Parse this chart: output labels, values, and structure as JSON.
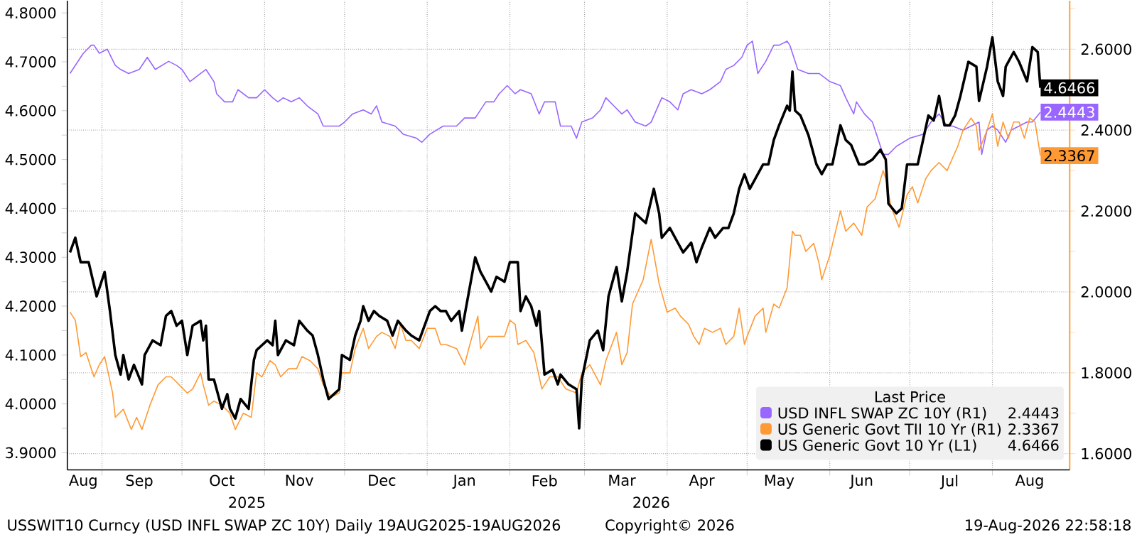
{
  "chart_data": {
    "type": "line",
    "legend_title": "Last Price",
    "legend": "bottom right",
    "grid": true,
    "xlim": [
      "2025-08-19",
      "2026-08-30"
    ],
    "xticks": [
      {
        "value": "2025-08-25",
        "label": "Aug"
      },
      {
        "value": "2025-09-01",
        "label": null
      },
      {
        "value": "2025-09-15",
        "label": "Sep"
      },
      {
        "value": "2025-10-01",
        "label": null
      },
      {
        "value": "2025-10-16",
        "label": "Oct"
      },
      {
        "value": "2025-11-01",
        "label": null
      },
      {
        "value": "2025-11-14",
        "label": "Nov"
      },
      {
        "value": "2025-12-01",
        "label": null
      },
      {
        "value": "2025-12-15",
        "label": "Dec"
      },
      {
        "value": "2026-01-01",
        "label": null
      },
      {
        "value": "2026-01-15",
        "label": "Jan"
      },
      {
        "value": "2026-02-01",
        "label": null
      },
      {
        "value": "2026-02-14",
        "label": "Feb"
      },
      {
        "value": "2026-03-01",
        "label": null
      },
      {
        "value": "2026-03-15",
        "label": "Mar"
      },
      {
        "value": "2026-04-01",
        "label": null
      },
      {
        "value": "2026-04-14",
        "label": "Apr"
      },
      {
        "value": "2026-05-01",
        "label": null
      },
      {
        "value": "2026-05-13",
        "label": "May"
      },
      {
        "value": "2026-06-01",
        "label": null
      },
      {
        "value": "2026-06-13",
        "label": "Jun"
      },
      {
        "value": "2026-07-01",
        "label": null
      },
      {
        "value": "2026-07-16",
        "label": "Jul"
      },
      {
        "value": "2026-08-01",
        "label": null
      },
      {
        "value": "2026-08-15",
        "label": "Aug"
      }
    ],
    "ylim": [
      3.865,
      4.825
    ],
    "yticks": [
      {
        "value": 3.9,
        "label": "3.9000"
      },
      {
        "value": 3.95,
        "label": null
      },
      {
        "value": 4.0,
        "label": "4.0000"
      },
      {
        "value": 4.05,
        "label": null
      },
      {
        "value": 4.1,
        "label": "4.1000"
      },
      {
        "value": 4.15,
        "label": null
      },
      {
        "value": 4.2,
        "label": "4.2000"
      },
      {
        "value": 4.25,
        "label": null
      },
      {
        "value": 4.3,
        "label": "4.3000"
      },
      {
        "value": 4.35,
        "label": null
      },
      {
        "value": 4.4,
        "label": "4.4000"
      },
      {
        "value": 4.45,
        "label": null
      },
      {
        "value": 4.5,
        "label": "4.5000"
      },
      {
        "value": 4.55,
        "label": null
      },
      {
        "value": 4.6,
        "label": "4.6000"
      },
      {
        "value": 4.65,
        "label": null
      },
      {
        "value": 4.7,
        "label": "4.7000"
      },
      {
        "value": 4.75,
        "label": null
      },
      {
        "value": 4.8,
        "label": "4.8000"
      }
    ],
    "y2lim": [
      1.56,
      2.72
    ],
    "y2ticks": [
      {
        "value": 1.6,
        "label": "1.6000"
      },
      {
        "value": 1.7,
        "label": null
      },
      {
        "value": 1.8,
        "label": "1.8000"
      },
      {
        "value": 1.9,
        "label": null
      },
      {
        "value": 2.0,
        "label": "2.0000"
      },
      {
        "value": 2.1,
        "label": null
      },
      {
        "value": 2.2,
        "label": "2.2000"
      },
      {
        "value": 2.3,
        "label": null
      },
      {
        "value": 2.4,
        "label": "2.4000"
      },
      {
        "value": 2.5,
        "label": null
      },
      {
        "value": 2.6,
        "label": "2.6000"
      },
      {
        "value": 2.7,
        "label": null
      }
    ],
    "annotations": [
      "2025",
      "2026",
      "USSWIT10 Curncy (USD INFL SWAP ZC 10Y) Daily 19AUG2025-19AUG2026",
      "Copyright© 2026",
      "19-Aug-2026 22:58:18"
    ],
    "series": [
      {
        "name": "USD INFL SWAP ZC 10Y (R1)",
        "color": "#9966ff",
        "axis": "y2",
        "x": [
          "2025-08-20",
          "2025-08-25",
          "2025-08-28",
          "2025-08-29",
          "2025-08-31",
          "2025-09-03",
          "2025-09-06",
          "2025-09-08",
          "2025-09-11",
          "2025-09-15",
          "2025-09-18",
          "2025-09-21",
          "2025-09-26",
          "2025-09-29",
          "2025-10-01",
          "2025-10-04",
          "2025-10-08",
          "2025-10-10",
          "2025-10-13",
          "2025-10-14",
          "2025-10-17",
          "2025-10-20",
          "2025-10-22",
          "2025-10-26",
          "2025-10-29",
          "2025-11-01",
          "2025-11-04",
          "2025-11-06",
          "2025-11-08",
          "2025-11-11",
          "2025-11-14",
          "2025-11-17",
          "2025-11-21",
          "2025-11-23",
          "2025-11-26",
          "2025-11-29",
          "2025-12-01",
          "2025-12-04",
          "2025-12-08",
          "2025-12-11",
          "2025-12-13",
          "2025-12-15",
          "2025-12-20",
          "2025-12-23",
          "2025-12-28",
          "2025-12-30",
          "2026-01-02",
          "2026-01-07",
          "2026-01-12",
          "2026-01-15",
          "2026-01-19",
          "2026-01-23",
          "2026-01-26",
          "2026-01-28",
          "2026-01-31",
          "2026-02-03",
          "2026-02-05",
          "2026-02-09",
          "2026-02-12",
          "2026-02-14",
          "2026-02-18",
          "2026-02-20",
          "2026-02-24",
          "2026-02-26",
          "2026-02-28",
          "2026-03-04",
          "2026-03-07",
          "2026-03-09",
          "2026-03-12",
          "2026-03-15",
          "2026-03-17",
          "2026-03-20",
          "2026-03-24",
          "2026-03-26",
          "2026-03-30",
          "2026-04-02",
          "2026-04-05",
          "2026-04-07",
          "2026-04-10",
          "2026-04-14",
          "2026-04-17",
          "2026-04-21",
          "2026-04-23",
          "2026-04-26",
          "2026-04-29",
          "2026-05-01",
          "2026-05-03",
          "2026-05-05",
          "2026-05-08",
          "2026-05-11",
          "2026-05-13",
          "2026-05-16",
          "2026-05-17",
          "2026-05-20",
          "2026-05-24",
          "2026-05-28",
          "2026-06-01",
          "2026-06-05",
          "2026-06-07",
          "2026-06-10",
          "2026-06-11",
          "2026-06-14",
          "2026-06-17",
          "2026-06-21",
          "2026-06-23",
          "2026-06-26",
          "2026-07-01",
          "2026-07-06",
          "2026-07-09",
          "2026-07-12",
          "2026-07-15",
          "2026-07-17",
          "2026-07-21",
          "2026-07-24",
          "2026-07-27",
          "2026-07-28",
          "2026-07-30",
          "2026-08-01",
          "2026-08-03",
          "2026-08-06",
          "2026-08-08",
          "2026-08-11",
          "2026-08-14",
          "2026-08-16",
          "2026-08-19"
        ],
        "values": [
          2.54,
          2.59,
          2.61,
          2.61,
          2.59,
          2.6,
          2.56,
          2.55,
          2.54,
          2.55,
          2.58,
          2.55,
          2.57,
          2.56,
          2.55,
          2.52,
          2.54,
          2.55,
          2.52,
          2.49,
          2.47,
          2.47,
          2.5,
          2.48,
          2.48,
          2.5,
          2.48,
          2.47,
          2.48,
          2.47,
          2.48,
          2.46,
          2.44,
          2.41,
          2.41,
          2.41,
          2.42,
          2.44,
          2.45,
          2.44,
          2.46,
          2.42,
          2.41,
          2.39,
          2.38,
          2.37,
          2.39,
          2.41,
          2.41,
          2.43,
          2.43,
          2.47,
          2.47,
          2.49,
          2.51,
          2.49,
          2.5,
          2.49,
          2.44,
          2.47,
          2.47,
          2.41,
          2.41,
          2.38,
          2.42,
          2.43,
          2.45,
          2.48,
          2.46,
          2.44,
          2.45,
          2.42,
          2.41,
          2.42,
          2.48,
          2.47,
          2.45,
          2.49,
          2.5,
          2.49,
          2.5,
          2.52,
          2.55,
          2.56,
          2.58,
          2.61,
          2.62,
          2.54,
          2.57,
          2.61,
          2.61,
          2.62,
          2.61,
          2.55,
          2.54,
          2.54,
          2.52,
          2.51,
          2.48,
          2.44,
          2.47,
          2.44,
          2.42,
          2.34,
          2.34,
          2.36,
          2.38,
          2.39,
          2.42,
          2.44,
          2.41,
          2.41,
          2.4,
          2.41,
          2.42,
          2.34,
          2.4,
          2.41,
          2.4,
          2.37,
          2.4,
          2.41,
          2.42,
          2.42,
          2.4443
        ],
        "value_labels": [
          null,
          null,
          null,
          null,
          null,
          null,
          null,
          null,
          null,
          null,
          null,
          null,
          null,
          null,
          null,
          null,
          null,
          null,
          null,
          null,
          null,
          null,
          null,
          null,
          null,
          null,
          null,
          null,
          null,
          null,
          null,
          null,
          null,
          null,
          null,
          null,
          null,
          null,
          null,
          null,
          null,
          null,
          null,
          null,
          null,
          null,
          null,
          null,
          null,
          null,
          null,
          null,
          null,
          null,
          null,
          null,
          null,
          null,
          null,
          null,
          null,
          null,
          null,
          null,
          null,
          null,
          null,
          null,
          null,
          null,
          null,
          null,
          null,
          null,
          null,
          null,
          null,
          null,
          null,
          null,
          null,
          null,
          null,
          null,
          null,
          null,
          null,
          null,
          null,
          null,
          null,
          null,
          null,
          null,
          null,
          null,
          null,
          null,
          null,
          null,
          null,
          null,
          null,
          null,
          null,
          null,
          null,
          null,
          null,
          null,
          null,
          null,
          null,
          null,
          null,
          null,
          null,
          null,
          null,
          null,
          null,
          null,
          null,
          null,
          "2.4443"
        ]
      },
      {
        "name": "US Generic Govt TII 10 Yr (R1)",
        "color": "#ff9933",
        "axis": "y2",
        "x": [
          "2025-08-20",
          "2025-08-22",
          "2025-08-24",
          "2025-08-26",
          "2025-08-29",
          "2025-08-31",
          "2025-09-02",
          "2025-09-05",
          "2025-09-06",
          "2025-09-09",
          "2025-09-12",
          "2025-09-14",
          "2025-09-16",
          "2025-09-19",
          "2025-09-22",
          "2025-09-25",
          "2025-09-27",
          "2025-09-30",
          "2025-10-03",
          "2025-10-05",
          "2025-10-08",
          "2025-10-09",
          "2025-10-11",
          "2025-10-13",
          "2025-10-16",
          "2025-10-19",
          "2025-10-21",
          "2025-10-24",
          "2025-10-27",
          "2025-10-29",
          "2025-10-31",
          "2025-11-03",
          "2025-11-05",
          "2025-11-07",
          "2025-11-10",
          "2025-11-13",
          "2025-11-15",
          "2025-11-18",
          "2025-11-21",
          "2025-11-23",
          "2025-11-26",
          "2025-11-29",
          "2025-11-30",
          "2025-12-03",
          "2025-12-05",
          "2025-12-08",
          "2025-12-10",
          "2025-12-13",
          "2025-12-15",
          "2025-12-18",
          "2025-12-20",
          "2025-12-22",
          "2025-12-24",
          "2025-12-26",
          "2025-12-29",
          "2026-01-01",
          "2026-01-04",
          "2026-01-06",
          "2026-01-08",
          "2026-01-12",
          "2026-01-15",
          "2026-01-17",
          "2026-01-20",
          "2026-01-21",
          "2026-01-24",
          "2026-01-27",
          "2026-01-30",
          "2026-02-01",
          "2026-02-03",
          "2026-02-04",
          "2026-02-07",
          "2026-02-10",
          "2026-02-12",
          "2026-02-13",
          "2026-02-16",
          "2026-02-19",
          "2026-02-22",
          "2026-02-26",
          "2026-02-28",
          "2026-03-03",
          "2026-03-07",
          "2026-03-09",
          "2026-03-13",
          "2026-03-15",
          "2026-03-17",
          "2026-03-19",
          "2026-03-23",
          "2026-03-26",
          "2026-03-29",
          "2026-04-01",
          "2026-04-04",
          "2026-04-06",
          "2026-04-09",
          "2026-04-11",
          "2026-04-13",
          "2026-04-15",
          "2026-04-18",
          "2026-04-21",
          "2026-04-23",
          "2026-04-26",
          "2026-04-28",
          "2026-04-30",
          "2026-05-01",
          "2026-05-04",
          "2026-05-07",
          "2026-05-08",
          "2026-05-11",
          "2026-05-13",
          "2026-05-16",
          "2026-05-18",
          "2026-05-19",
          "2026-05-21",
          "2026-05-23",
          "2026-05-26",
          "2026-05-28",
          "2026-05-29",
          "2026-06-01",
          "2026-06-05",
          "2026-06-07",
          "2026-06-10",
          "2026-06-13",
          "2026-06-15",
          "2026-06-18",
          "2026-06-21",
          "2026-06-22",
          "2026-06-24",
          "2026-06-27",
          "2026-06-30",
          "2026-07-02",
          "2026-07-04",
          "2026-07-07",
          "2026-07-09",
          "2026-07-12",
          "2026-07-15",
          "2026-07-17",
          "2026-07-19",
          "2026-07-21",
          "2026-07-24",
          "2026-07-26",
          "2026-07-27",
          "2026-07-30",
          "2026-08-01",
          "2026-08-03",
          "2026-08-05",
          "2026-08-07",
          "2026-08-09",
          "2026-08-11",
          "2026-08-13",
          "2026-08-15",
          "2026-08-17",
          "2026-08-19"
        ],
        "values": [
          1.95,
          1.93,
          1.84,
          1.85,
          1.79,
          1.82,
          1.84,
          1.75,
          1.69,
          1.71,
          1.66,
          1.69,
          1.66,
          1.72,
          1.77,
          1.79,
          1.79,
          1.77,
          1.75,
          1.76,
          1.8,
          1.77,
          1.72,
          1.73,
          1.72,
          1.7,
          1.66,
          1.7,
          1.69,
          1.8,
          1.79,
          1.83,
          1.82,
          1.79,
          1.81,
          1.81,
          1.84,
          1.83,
          1.81,
          1.77,
          1.74,
          1.75,
          1.8,
          1.8,
          1.86,
          1.91,
          1.86,
          1.89,
          1.9,
          1.89,
          1.86,
          1.92,
          1.88,
          1.88,
          1.86,
          1.91,
          1.91,
          1.87,
          1.87,
          1.86,
          1.82,
          1.87,
          1.94,
          1.86,
          1.89,
          1.89,
          1.89,
          1.93,
          1.92,
          1.87,
          1.88,
          1.85,
          1.79,
          1.76,
          1.79,
          1.79,
          1.76,
          1.75,
          1.8,
          1.82,
          1.77,
          1.83,
          1.9,
          1.82,
          1.85,
          1.97,
          2.03,
          2.13,
          2.02,
          1.95,
          1.96,
          1.94,
          1.92,
          1.89,
          1.87,
          1.91,
          1.9,
          1.91,
          1.87,
          1.89,
          1.96,
          1.87,
          1.89,
          1.94,
          1.96,
          1.9,
          1.97,
          1.96,
          2.01,
          2.15,
          2.14,
          2.14,
          2.1,
          2.12,
          2.07,
          2.03,
          2.09,
          2.2,
          2.15,
          2.17,
          2.14,
          2.21,
          2.23,
          2.3,
          2.28,
          2.21,
          2.16,
          2.24,
          2.26,
          2.22,
          2.28,
          2.3,
          2.32,
          2.3,
          2.33,
          2.36,
          2.4,
          2.43,
          2.41,
          2.35,
          2.4,
          2.44,
          2.36,
          2.42,
          2.38,
          2.42,
          2.42,
          2.38,
          2.43,
          2.42,
          2.3367
        ],
        "value_labels": [
          null,
          null,
          null,
          null,
          null,
          null,
          null,
          null,
          null,
          null,
          null,
          null,
          null,
          null,
          null,
          null,
          null,
          null,
          null,
          null,
          null,
          null,
          null,
          null,
          null,
          null,
          null,
          null,
          null,
          null,
          null,
          null,
          null,
          null,
          null,
          null,
          null,
          null,
          null,
          null,
          null,
          null,
          null,
          null,
          null,
          null,
          null,
          null,
          null,
          null,
          null,
          null,
          null,
          null,
          null,
          null,
          null,
          null,
          null,
          null,
          null,
          null,
          null,
          null,
          null,
          null,
          null,
          null,
          null,
          null,
          null,
          null,
          null,
          null,
          null,
          null,
          null,
          null,
          null,
          null,
          null,
          null,
          null,
          null,
          null,
          null,
          null,
          null,
          null,
          null,
          null,
          null,
          null,
          null,
          null,
          null,
          null,
          null,
          null,
          null,
          null,
          null,
          null,
          null,
          null,
          null,
          null,
          null,
          null,
          null,
          null,
          null,
          null,
          null,
          null,
          null,
          null,
          null,
          null,
          null,
          null,
          null,
          null,
          null,
          null,
          null,
          null,
          null,
          null,
          null,
          null,
          null,
          null,
          null,
          null,
          null,
          null,
          null,
          null,
          null,
          null,
          null,
          null,
          null,
          null,
          null,
          null,
          null,
          null,
          null,
          "2.3367"
        ]
      },
      {
        "name": "US Generic Govt 10 Yr (L1)",
        "color": "#000000",
        "axis": "y",
        "x": [
          "2025-08-20",
          "2025-08-22",
          "2025-08-24",
          "2025-08-27",
          "2025-08-30",
          "2025-09-02",
          "2025-09-04",
          "2025-09-06",
          "2025-09-08",
          "2025-09-09",
          "2025-09-11",
          "2025-09-13",
          "2025-09-16",
          "2025-09-17",
          "2025-09-20",
          "2025-09-23",
          "2025-09-25",
          "2025-09-27",
          "2025-09-29",
          "2025-10-01",
          "2025-10-03",
          "2025-10-05",
          "2025-10-08",
          "2025-10-09",
          "2025-10-10",
          "2025-10-11",
          "2025-10-13",
          "2025-10-16",
          "2025-10-18",
          "2025-10-19",
          "2025-10-21",
          "2025-10-23",
          "2025-10-26",
          "2025-10-28",
          "2025-10-29",
          "2025-10-31",
          "2025-11-02",
          "2025-11-04",
          "2025-11-05",
          "2025-11-06",
          "2025-11-09",
          "2025-11-12",
          "2025-11-14",
          "2025-11-17",
          "2025-11-19",
          "2025-11-21",
          "2025-11-23",
          "2025-11-25",
          "2025-11-27",
          "2025-11-29",
          "2025-11-30",
          "2025-12-03",
          "2025-12-05",
          "2025-12-07",
          "2025-12-08",
          "2025-12-10",
          "2025-12-12",
          "2025-12-14",
          "2025-12-17",
          "2025-12-19",
          "2025-12-21",
          "2025-12-24",
          "2025-12-26",
          "2025-12-29",
          "2025-12-31",
          "2026-01-02",
          "2026-01-04",
          "2026-01-06",
          "2026-01-08",
          "2026-01-10",
          "2026-01-13",
          "2026-01-14",
          "2026-01-16",
          "2026-01-19",
          "2026-01-21",
          "2026-01-22",
          "2026-01-25",
          "2026-01-27",
          "2026-01-30",
          "2026-02-01",
          "2026-02-04",
          "2026-02-05",
          "2026-02-07",
          "2026-02-09",
          "2026-02-11",
          "2026-02-12",
          "2026-02-14",
          "2026-02-17",
          "2026-02-19",
          "2026-02-20",
          "2026-02-23",
          "2026-02-26",
          "2026-02-27",
          "2026-02-28",
          "2026-03-03",
          "2026-03-06",
          "2026-03-08",
          "2026-03-10",
          "2026-03-13",
          "2026-03-15",
          "2026-03-17",
          "2026-03-20",
          "2026-03-24",
          "2026-03-27",
          "2026-03-29",
          "2026-03-30",
          "2026-04-02",
          "2026-04-05",
          "2026-04-07",
          "2026-04-10",
          "2026-04-12",
          "2026-04-14",
          "2026-04-17",
          "2026-04-19",
          "2026-04-22",
          "2026-04-24",
          "2026-04-26",
          "2026-04-28",
          "2026-04-30",
          "2026-05-02",
          "2026-05-04",
          "2026-05-07",
          "2026-05-09",
          "2026-05-11",
          "2026-05-13",
          "2026-05-16",
          "2026-05-17",
          "2026-05-18",
          "2026-05-19",
          "2026-05-21",
          "2026-05-24",
          "2026-05-27",
          "2026-05-29",
          "2026-05-31",
          "2026-06-02",
          "2026-06-05",
          "2026-06-07",
          "2026-06-09",
          "2026-06-12",
          "2026-06-14",
          "2026-06-17",
          "2026-06-20",
          "2026-06-22",
          "2026-06-23",
          "2026-06-26",
          "2026-06-28",
          "2026-06-30",
          "2026-07-02",
          "2026-07-04",
          "2026-07-06",
          "2026-07-08",
          "2026-07-10",
          "2026-07-12",
          "2026-07-14",
          "2026-07-16",
          "2026-07-18",
          "2026-07-20",
          "2026-07-23",
          "2026-07-26",
          "2026-07-27",
          "2026-07-30",
          "2026-08-01",
          "2026-08-03",
          "2026-08-05",
          "2026-08-06",
          "2026-08-09",
          "2026-08-11",
          "2026-08-14",
          "2026-08-16",
          "2026-08-18",
          "2026-08-19"
        ],
        "values": [
          4.31,
          4.34,
          4.29,
          4.29,
          4.22,
          4.27,
          4.19,
          4.1,
          4.06,
          4.1,
          4.05,
          4.08,
          4.04,
          4.1,
          4.13,
          4.12,
          4.18,
          4.19,
          4.16,
          4.17,
          4.1,
          4.16,
          4.17,
          4.13,
          4.16,
          4.05,
          4.05,
          3.99,
          4.02,
          3.99,
          3.97,
          4.01,
          3.99,
          4.09,
          4.11,
          4.12,
          4.13,
          4.12,
          4.17,
          4.1,
          4.13,
          4.12,
          4.17,
          4.15,
          4.14,
          4.1,
          4.05,
          4.01,
          4.02,
          4.03,
          4.1,
          4.09,
          4.14,
          4.17,
          4.2,
          4.17,
          4.19,
          4.18,
          4.17,
          4.14,
          4.17,
          4.15,
          4.14,
          4.13,
          4.16,
          4.19,
          4.2,
          4.19,
          4.19,
          4.17,
          4.19,
          4.15,
          4.21,
          4.3,
          4.27,
          4.26,
          4.23,
          4.26,
          4.25,
          4.29,
          4.29,
          4.19,
          4.22,
          4.2,
          4.16,
          4.19,
          4.06,
          4.07,
          4.04,
          4.06,
          4.04,
          4.03,
          3.95,
          4.05,
          4.13,
          4.15,
          4.11,
          4.22,
          4.28,
          4.21,
          4.27,
          4.39,
          4.37,
          4.44,
          4.39,
          4.34,
          4.36,
          4.33,
          4.31,
          4.33,
          4.29,
          4.32,
          4.36,
          4.34,
          4.36,
          4.36,
          4.39,
          4.44,
          4.47,
          4.44,
          4.46,
          4.49,
          4.49,
          4.54,
          4.57,
          4.61,
          4.6,
          4.68,
          4.6,
          4.59,
          4.55,
          4.49,
          4.47,
          4.49,
          4.49,
          4.57,
          4.54,
          4.53,
          4.49,
          4.49,
          4.5,
          4.52,
          4.5,
          4.41,
          4.39,
          4.4,
          4.49,
          4.49,
          4.49,
          4.54,
          4.59,
          4.58,
          4.63,
          4.57,
          4.57,
          4.59,
          4.63,
          4.7,
          4.69,
          4.62,
          4.69,
          4.75,
          4.66,
          4.63,
          4.69,
          4.72,
          4.7,
          4.66,
          4.73,
          4.72,
          4.6466
        ],
        "value_labels": [
          null,
          null,
          null,
          null,
          null,
          null,
          null,
          null,
          null,
          null,
          null,
          null,
          null,
          null,
          null,
          null,
          null,
          null,
          null,
          null,
          null,
          null,
          null,
          null,
          null,
          null,
          null,
          null,
          null,
          null,
          null,
          null,
          null,
          null,
          null,
          null,
          null,
          null,
          null,
          null,
          null,
          null,
          null,
          null,
          null,
          null,
          null,
          null,
          null,
          null,
          null,
          null,
          null,
          null,
          null,
          null,
          null,
          null,
          null,
          null,
          null,
          null,
          null,
          null,
          null,
          null,
          null,
          null,
          null,
          null,
          null,
          null,
          null,
          null,
          null,
          null,
          null,
          null,
          null,
          null,
          null,
          null,
          null,
          null,
          null,
          null,
          null,
          null,
          null,
          null,
          null,
          null,
          null,
          null,
          null,
          null,
          null,
          null,
          null,
          null,
          null,
          null,
          null,
          null,
          null,
          null,
          null,
          null,
          null,
          null,
          null,
          null,
          null,
          null,
          null,
          null,
          null,
          null,
          null,
          null,
          null,
          null,
          null,
          null,
          null,
          null,
          null,
          null,
          null,
          null,
          null,
          null,
          null,
          null,
          null,
          null,
          null,
          null,
          null,
          null,
          null,
          null,
          null,
          null,
          null,
          null,
          null,
          null,
          null,
          null,
          null,
          null,
          null,
          null,
          null,
          null,
          null,
          null,
          null,
          null,
          null,
          null,
          null,
          null,
          null,
          null,
          null,
          null,
          null,
          null,
          "4.6466"
        ]
      }
    ]
  }
}
